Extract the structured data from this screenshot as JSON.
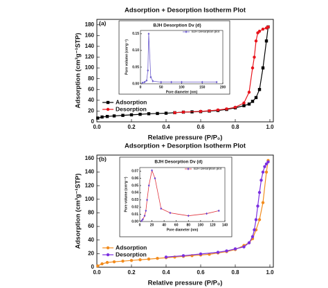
{
  "chart_data": [
    {
      "type": "line",
      "title": "Adsorption + Desorption Isotherm Plot",
      "panel_label": "(a)",
      "x_label": "Relative pressure (P/P₀)",
      "y_label": "Adsorption (cm³g⁻¹STP)",
      "xlim": [
        0,
        1.02
      ],
      "ylim": [
        0,
        190
      ],
      "xticks": [
        {
          "value": 0,
          "label": "0.0"
        },
        0.2,
        0.4,
        0.6,
        0.8,
        {
          "value": 1,
          "label": "1.0"
        }
      ],
      "yticks": [
        0,
        20,
        40,
        60,
        80,
        100,
        120,
        140,
        160,
        180
      ],
      "legend": "lower left",
      "series": [
        {
          "name": "Adsorption",
          "color": "#000000",
          "marker": "square",
          "x": [
            0.005,
            0.03,
            0.06,
            0.1,
            0.15,
            0.2,
            0.25,
            0.3,
            0.35,
            0.4,
            0.45,
            0.5,
            0.55,
            0.6,
            0.65,
            0.7,
            0.75,
            0.8,
            0.85,
            0.88,
            0.9,
            0.92,
            0.94,
            0.96,
            0.98,
            0.99
          ],
          "values": [
            7,
            9,
            10,
            11,
            12,
            13,
            14,
            15,
            15.5,
            16,
            17,
            18,
            18.5,
            19,
            20,
            21,
            23,
            26,
            30,
            33,
            38,
            45,
            60,
            100,
            150,
            176
          ]
        },
        {
          "name": "Desorption",
          "color": "#e8141c",
          "marker": "circle",
          "x": [
            0.99,
            0.98,
            0.96,
            0.94,
            0.93,
            0.92,
            0.91,
            0.9,
            0.88,
            0.85,
            0.8,
            0.75,
            0.7,
            0.65,
            0.6,
            0.5,
            0.45
          ],
          "values": [
            176,
            174,
            172,
            168,
            165,
            150,
            120,
            100,
            55,
            35,
            27,
            24,
            22,
            20.5,
            19.5,
            18,
            17
          ]
        }
      ]
    },
    {
      "type": "line",
      "title": "BJH Desorption Dv (d)",
      "x_label": "Pore diameter (nm)",
      "y_label": "Pore volume (cm³g⁻¹)",
      "xlim": [
        0,
        200
      ],
      "ylim": [
        0,
        0.16
      ],
      "xticks": [
        0,
        50,
        100,
        150,
        200
      ],
      "yticks": [
        {
          "value": 0,
          "label": "0.00"
        },
        0.05,
        {
          "value": 0.1,
          "label": "0.10"
        },
        0.15
      ],
      "legend": "upper right",
      "series": [
        {
          "name": "BJH Desorption plot",
          "color": "#6a5acd",
          "marker": "diamond",
          "x": [
            5,
            10,
            15,
            18,
            20,
            25,
            30,
            50,
            75,
            100,
            150,
            185
          ],
          "values": [
            0.003,
            0.005,
            0.01,
            0.04,
            0.15,
            0.02,
            0.008,
            0.005,
            0.005,
            0.005,
            0.005,
            0.005
          ]
        }
      ]
    },
    {
      "type": "line",
      "title": "Adsorption + Desorption Isotherm Plot",
      "panel_label": "(b)",
      "x_label": "Relative pressure (P/P₀)",
      "y_label": "Adsorption (cm³g⁻¹STP)",
      "xlim": [
        0,
        1.02
      ],
      "ylim": [
        0,
        165
      ],
      "xticks": [
        {
          "value": 0,
          "label": "0.0"
        },
        0.2,
        0.4,
        0.6,
        0.8,
        {
          "value": 1,
          "label": "1.0"
        }
      ],
      "yticks": [
        0,
        20,
        40,
        60,
        80,
        100,
        120,
        140,
        160
      ],
      "legend": "lower left",
      "series": [
        {
          "name": "Adsorption",
          "color": "#f28c1e",
          "marker": "circle",
          "x": [
            0.005,
            0.03,
            0.06,
            0.1,
            0.15,
            0.2,
            0.25,
            0.3,
            0.35,
            0.4,
            0.45,
            0.5,
            0.55,
            0.6,
            0.65,
            0.7,
            0.75,
            0.8,
            0.85,
            0.88,
            0.9,
            0.92,
            0.94,
            0.96,
            0.98,
            0.99
          ],
          "values": [
            2,
            5,
            7,
            8,
            9,
            10,
            11,
            12,
            13,
            14,
            15,
            16,
            17,
            18,
            19,
            21,
            23,
            26,
            32,
            36,
            42,
            55,
            70,
            95,
            140,
            157
          ]
        },
        {
          "name": "Desorption",
          "color": "#7b2fe0",
          "marker": "circle",
          "x": [
            0.99,
            0.98,
            0.97,
            0.96,
            0.95,
            0.94,
            0.93,
            0.92,
            0.91,
            0.9,
            0.88,
            0.85,
            0.8,
            0.75,
            0.7,
            0.6,
            0.5,
            0.4
          ],
          "values": [
            155,
            152,
            148,
            140,
            128,
            110,
            90,
            70,
            55,
            45,
            36,
            30,
            27,
            24,
            22,
            19.5,
            17,
            15
          ]
        }
      ]
    },
    {
      "type": "line",
      "title": "BJH Desorption Dv (d)",
      "x_label": "Pore diameter (nm)",
      "y_label": "Pore volume (cm³g⁻¹)",
      "xlim": [
        0,
        140
      ],
      "ylim": [
        0,
        0.075
      ],
      "xticks": [
        0,
        20,
        40,
        60,
        80,
        100,
        120,
        140
      ],
      "yticks": [
        {
          "value": 0,
          "label": "0.00"
        },
        0.01,
        0.02,
        0.03,
        0.04,
        0.05,
        0.06,
        0.07
      ],
      "legend": "upper right",
      "series": [
        {
          "name": "BJH Desorption plot",
          "color": "#6a3fd0",
          "line_color": "#e0303a",
          "marker": "diamond",
          "x": [
            3,
            5,
            8,
            10,
            12,
            15,
            20,
            25,
            35,
            50,
            80,
            110,
            130
          ],
          "values": [
            0.001,
            0.003,
            0.008,
            0.015,
            0.03,
            0.05,
            0.071,
            0.06,
            0.018,
            0.012,
            0.008,
            0.011,
            0.015
          ]
        }
      ]
    }
  ]
}
